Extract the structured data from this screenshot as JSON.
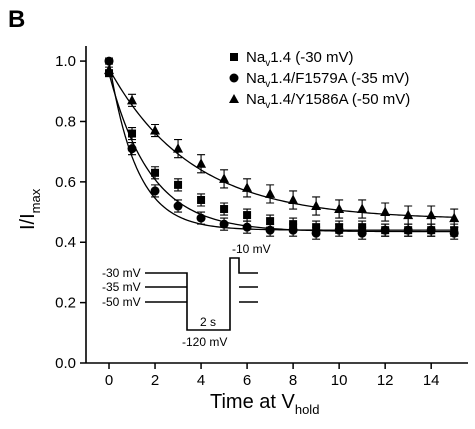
{
  "panel_label": "B",
  "chart_data": {
    "type": "scatter",
    "xlabel": {
      "text": "Time at V",
      "sub": "hold"
    },
    "ylabel": {
      "text": "I/I",
      "sub": "max"
    },
    "xlim": [
      -1,
      15.6
    ],
    "ylim": [
      0,
      1.05
    ],
    "xticks": [
      0,
      2,
      4,
      6,
      8,
      10,
      12,
      14
    ],
    "yticks": [
      0.0,
      0.2,
      0.4,
      0.6,
      0.8,
      1.0
    ],
    "ytick_labels": [
      "0.0",
      "0.2",
      "0.4",
      "0.6",
      "0.8",
      "1.0"
    ],
    "legend_position": "top-right",
    "series": [
      {
        "id": "square",
        "marker": "square",
        "legend": {
          "pre": "Na",
          "sub": "v",
          "post": "1.4 (-30 mV)"
        },
        "x": [
          0,
          1,
          2,
          3,
          4,
          5,
          6,
          7,
          8,
          9,
          10,
          11,
          12,
          13,
          14,
          15
        ],
        "y": [
          0.96,
          0.76,
          0.63,
          0.59,
          0.54,
          0.51,
          0.49,
          0.47,
          0.46,
          0.45,
          0.45,
          0.45,
          0.44,
          0.44,
          0.44,
          0.44
        ],
        "err": [
          0.01,
          0.02,
          0.02,
          0.02,
          0.02,
          0.02,
          0.02,
          0.02,
          0.02,
          0.02,
          0.02,
          0.02,
          0.02,
          0.02,
          0.02,
          0.02
        ],
        "fit": {
          "a": 0.435,
          "b": 0.525,
          "tau": 1.8
        }
      },
      {
        "id": "circle",
        "marker": "circle",
        "legend": {
          "pre": "Na",
          "sub": "v",
          "post": "1.4/F1579A (-35 mV)"
        },
        "x": [
          0,
          1,
          2,
          3,
          4,
          5,
          6,
          7,
          8,
          9,
          10,
          11,
          12,
          13,
          14,
          15
        ],
        "y": [
          1.0,
          0.71,
          0.57,
          0.52,
          0.48,
          0.46,
          0.45,
          0.44,
          0.44,
          0.43,
          0.44,
          0.43,
          0.44,
          0.44,
          0.44,
          0.43
        ],
        "err": [
          0.01,
          0.02,
          0.02,
          0.02,
          0.02,
          0.02,
          0.02,
          0.02,
          0.02,
          0.02,
          0.02,
          0.02,
          0.02,
          0.02,
          0.02,
          0.02
        ],
        "fit": {
          "a": 0.44,
          "b": 0.56,
          "tau": 1.2
        }
      },
      {
        "id": "triangle",
        "marker": "triangle",
        "legend": {
          "pre": "Na",
          "sub": "v",
          "post": "1.4/Y1586A (-50 mV)"
        },
        "x": [
          0,
          1,
          2,
          3,
          4,
          5,
          6,
          7,
          8,
          9,
          10,
          11,
          12,
          13,
          14,
          15
        ],
        "y": [
          0.97,
          0.87,
          0.77,
          0.71,
          0.66,
          0.61,
          0.58,
          0.56,
          0.54,
          0.52,
          0.51,
          0.51,
          0.5,
          0.49,
          0.49,
          0.48
        ],
        "err": [
          0.01,
          0.02,
          0.02,
          0.03,
          0.03,
          0.03,
          0.03,
          0.03,
          0.03,
          0.03,
          0.03,
          0.03,
          0.03,
          0.03,
          0.03,
          0.03
        ],
        "fit": {
          "a": 0.475,
          "b": 0.5,
          "tau": 3.6
        }
      }
    ],
    "inset_protocol": {
      "levels": [
        "-30 mV",
        "-35 mV",
        "-50 mV"
      ],
      "step_level": "-120 mV",
      "step_duration": "2 s",
      "test_level": "-10 mV"
    }
  }
}
